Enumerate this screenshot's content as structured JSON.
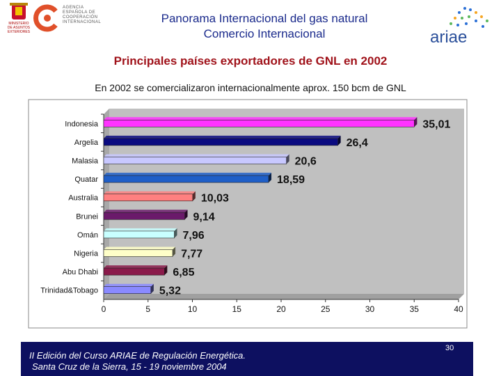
{
  "header": {
    "title_line1": "Panorama Internacional del gas natural",
    "title_line2": "Comercio Internacional",
    "agency_text": [
      "AGENCIA",
      "ESPAÑOLA DE",
      "COOPERACIÓN",
      "INTERNACIONAL"
    ],
    "ministry_text": [
      "MINISTERIO",
      "DE ASUNTOS",
      "EXTERIORES"
    ],
    "ariae_logo": "ariae"
  },
  "slide": {
    "subtitle": "Principales países exportadores de GNL en 2002",
    "note": "En 2002 se comercializaron internacionalmente aprox. 150 bcm de GNL"
  },
  "chart_data": {
    "type": "bar",
    "orientation": "horizontal",
    "categories": [
      "Indonesia",
      "Argelia",
      "Malasia",
      "Quatar",
      "Australia",
      "Brunei",
      "Omán",
      "Nigeria",
      "Abu Dhabi",
      "Trinidad&Tobago"
    ],
    "values": [
      35.01,
      26.4,
      20.6,
      18.59,
      10.03,
      9.14,
      7.96,
      7.77,
      6.85,
      5.32
    ],
    "value_labels": [
      "35,01",
      "26,4",
      "20,6",
      "18,59",
      "10,03",
      "9,14",
      "7,96",
      "7,77",
      "6,85",
      "5,32"
    ],
    "xlim": [
      0,
      40
    ],
    "xticks": [
      0,
      5,
      10,
      15,
      20,
      25,
      30,
      35,
      40
    ],
    "bar_colors": [
      "#ff33ff",
      "#0a0a80",
      "#c8c8ff",
      "#1f5fc8",
      "#ff8080",
      "#6a1a6a",
      "#c8ffff",
      "#ffffc8",
      "#8a1a4a",
      "#8a8aff"
    ],
    "grid": false,
    "plot_background": "#c0c0c0"
  },
  "footer": {
    "line1": "II Edición del Curso ARIAE de Regulación Energética.",
    "line2": "Santa Cruz de la Sierra, 15 - 19 noviembre 2004",
    "page_number": "30"
  }
}
